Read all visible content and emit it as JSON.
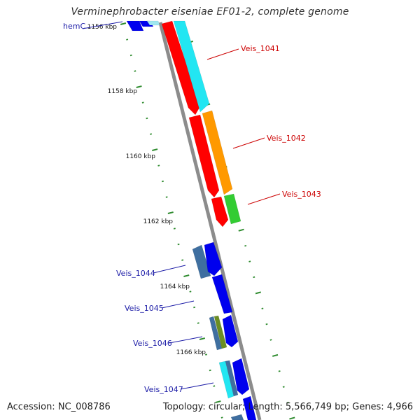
{
  "title": "Verminephrobacter eiseniae EF01-2, complete genome",
  "footer": {
    "accession": "Accession: NC_008786",
    "topology": "Topology: circular; Length: 5,566,749 bp; Genes: 4,966"
  },
  "colors": {
    "backbone": "#8c8c8c",
    "tick": "#2e8b2e",
    "label_red": "#cc0000",
    "label_blue": "#1a1aa6",
    "red": "#ff0000",
    "cyan": "#22e6f2",
    "orange": "#ff9900",
    "green": "#33cc33",
    "blue": "#0000ee",
    "steel": "#3f6fa0",
    "olive": "#6b8e23",
    "pale_cyan": "#9fe7f0"
  },
  "kbp_labels": [
    "1156 kbp",
    "1158 kbp",
    "1160 kbp",
    "1162 kbp",
    "1164 kbp",
    "1166 kbp"
  ],
  "genes_labelled": [
    {
      "name": "hemC",
      "color": "label_blue"
    },
    {
      "name": "Veis_1041",
      "color": "label_red"
    },
    {
      "name": "Veis_1042",
      "color": "label_red"
    },
    {
      "name": "Veis_1043",
      "color": "label_red"
    },
    {
      "name": "Veis_1044",
      "color": "label_blue"
    },
    {
      "name": "Veis_1045",
      "color": "label_blue"
    },
    {
      "name": "Veis_1046",
      "color": "label_blue"
    },
    {
      "name": "Veis_1047",
      "color": "label_blue"
    }
  ]
}
